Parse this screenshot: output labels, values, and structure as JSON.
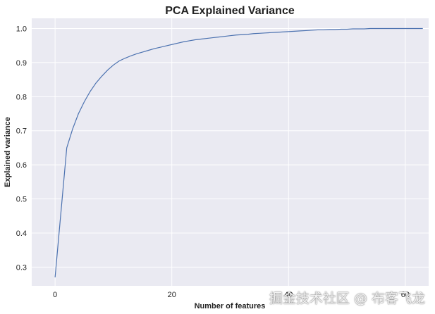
{
  "chart_data": {
    "type": "line",
    "title": "PCA Explained Variance",
    "xlabel": "Number of features",
    "ylabel": "Explained variance",
    "xlim": [
      -4,
      64
    ],
    "ylim": [
      0.245,
      1.03
    ],
    "xticks": [
      0,
      20,
      40,
      60
    ],
    "yticks": [
      0.3,
      0.4,
      0.5,
      0.6,
      0.7,
      0.8,
      0.9,
      1.0
    ],
    "grid": true,
    "series": [
      {
        "color": "#4c72b0",
        "x": [
          0,
          1,
          2,
          3,
          4,
          5,
          6,
          7,
          8,
          9,
          10,
          11,
          12,
          13,
          14,
          15,
          16,
          17,
          18,
          19,
          20,
          21,
          22,
          23,
          24,
          25,
          26,
          27,
          28,
          29,
          30,
          31,
          32,
          33,
          34,
          35,
          36,
          37,
          38,
          39,
          40,
          41,
          42,
          43,
          44,
          45,
          46,
          47,
          48,
          49,
          50,
          51,
          52,
          53,
          54,
          55,
          56,
          57,
          58,
          59,
          60,
          61,
          62,
          63
        ],
        "y": [
          0.27,
          0.46,
          0.65,
          0.705,
          0.75,
          0.785,
          0.815,
          0.84,
          0.86,
          0.878,
          0.893,
          0.905,
          0.913,
          0.92,
          0.926,
          0.931,
          0.936,
          0.941,
          0.945,
          0.949,
          0.953,
          0.957,
          0.961,
          0.964,
          0.967,
          0.969,
          0.971,
          0.973,
          0.975,
          0.977,
          0.979,
          0.981,
          0.982,
          0.983,
          0.985,
          0.986,
          0.987,
          0.988,
          0.989,
          0.99,
          0.991,
          0.992,
          0.993,
          0.994,
          0.995,
          0.996,
          0.996,
          0.997,
          0.997,
          0.998,
          0.998,
          0.999,
          0.999,
          0.999,
          1.0,
          1.0,
          1.0,
          1.0,
          1.0,
          1.0,
          1.0,
          1.0,
          1.0,
          1.0
        ]
      }
    ]
  },
  "watermark": "掘金技术社区 @ 布客飞龙"
}
